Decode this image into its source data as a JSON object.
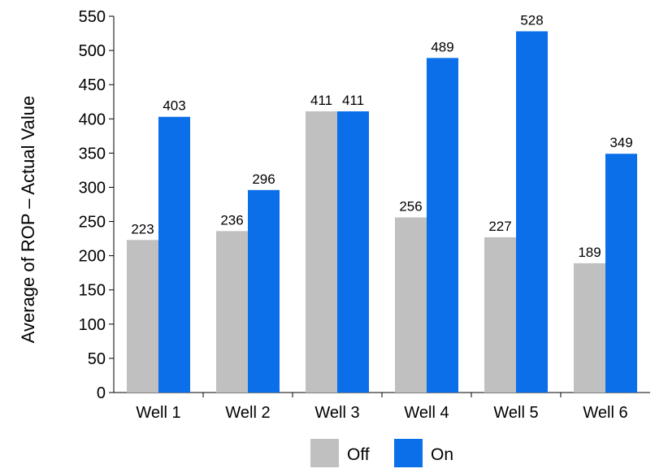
{
  "chart_data": {
    "type": "bar",
    "categories": [
      "Well 1",
      "Well 2",
      "Well 3",
      "Well 4",
      "Well 5",
      "Well 6"
    ],
    "series": [
      {
        "name": "Off",
        "values": [
          223,
          236,
          411,
          256,
          227,
          189
        ],
        "color": "#c0c0c0"
      },
      {
        "name": "On",
        "values": [
          403,
          296,
          411,
          489,
          528,
          349
        ],
        "color": "#0a6fe8"
      }
    ],
    "title": "",
    "xlabel": "",
    "ylabel": "Average of ROP – Actual Value",
    "ylim": [
      0,
      550
    ],
    "yticks": [
      0,
      50,
      100,
      150,
      200,
      250,
      300,
      350,
      400,
      450,
      500,
      550
    ],
    "grid": false,
    "legend_position": "bottom"
  }
}
